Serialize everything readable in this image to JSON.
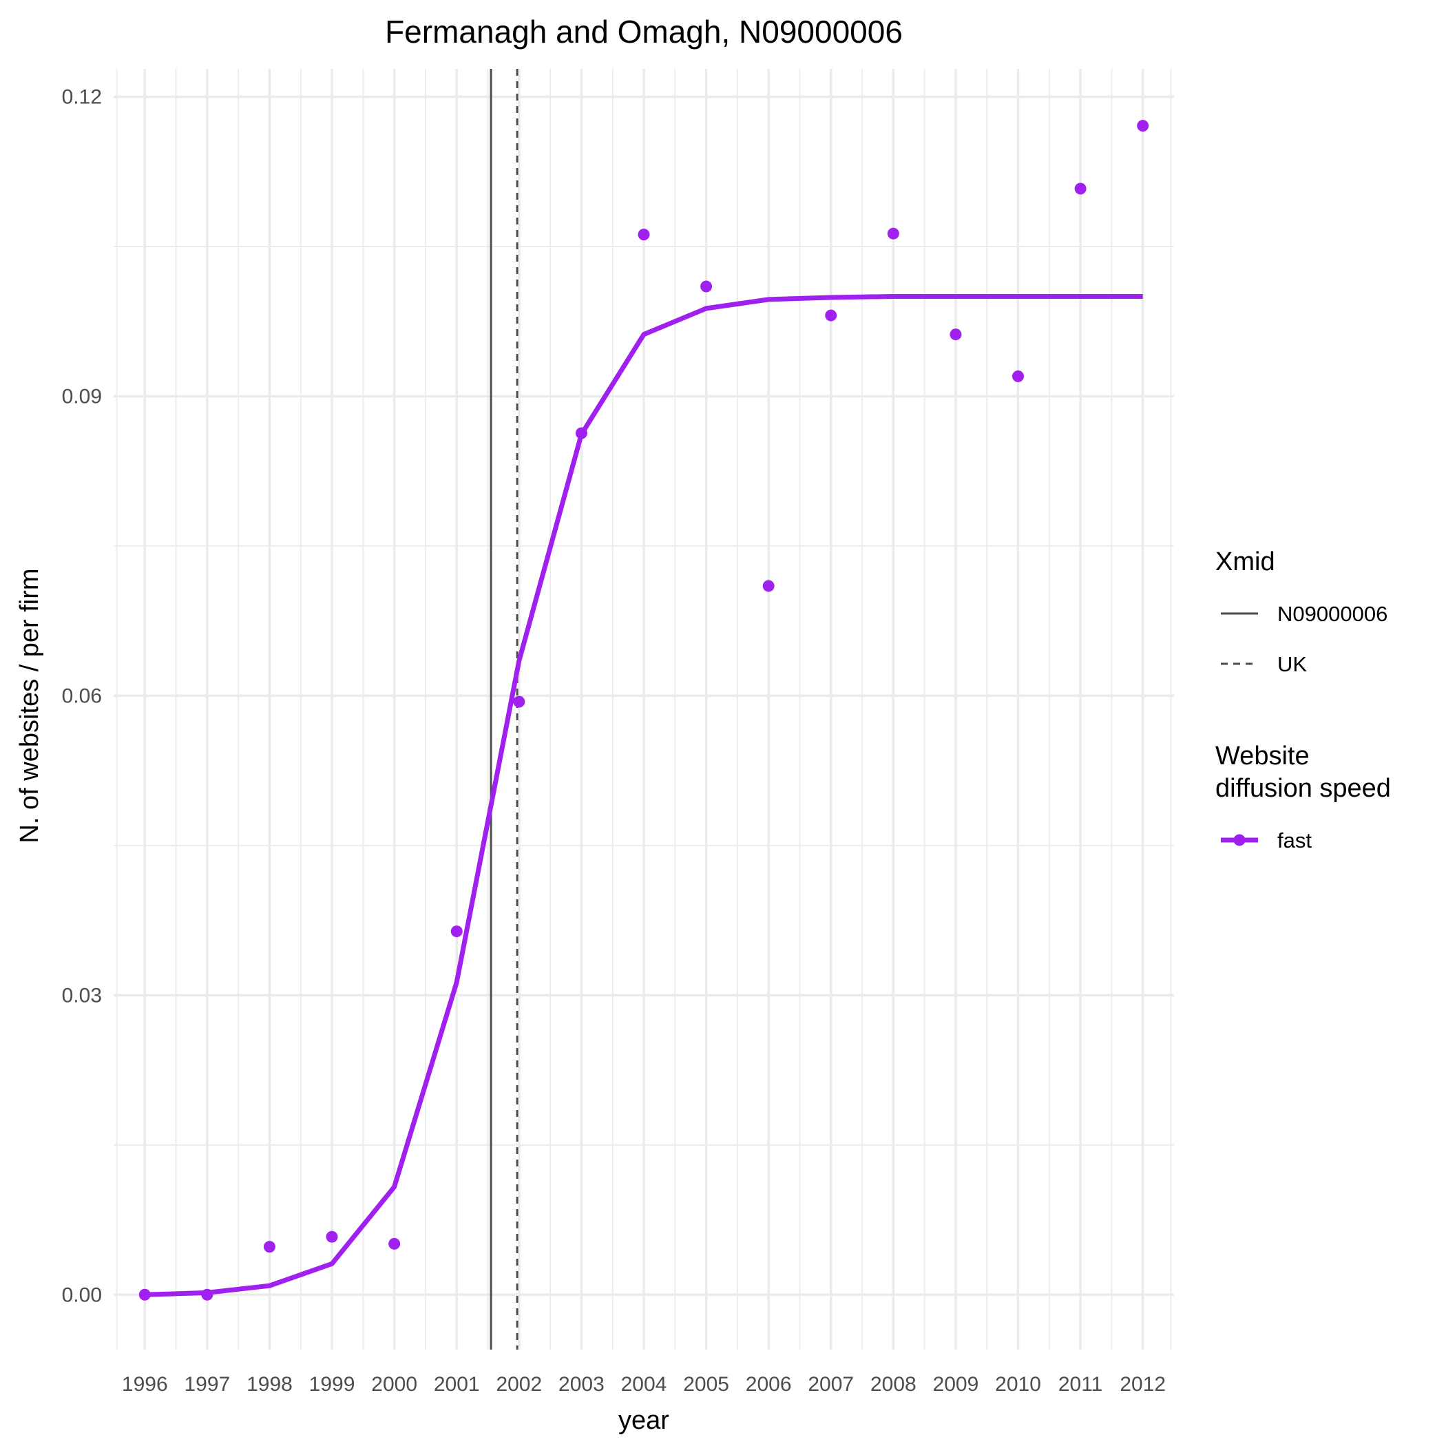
{
  "chart_data": {
    "type": "line",
    "title": "Fermanagh and Omagh, N09000006",
    "xlabel": "year",
    "ylabel": "N. of websites / per firm",
    "x": [
      1996,
      1997,
      1998,
      1999,
      2000,
      2001,
      2002,
      2003,
      2004,
      2005,
      2006,
      2007,
      2008,
      2009,
      2010,
      2011,
      2012
    ],
    "xlim": [
      1995.5,
      2012.5
    ],
    "ylim": [
      -0.0055,
      0.1228
    ],
    "yticks": [
      0.0,
      0.03,
      0.06,
      0.09,
      0.12
    ],
    "ytick_labels": [
      "0.00",
      "0.03",
      "0.06",
      "0.09",
      "0.12"
    ],
    "grid": true,
    "series": [
      {
        "name": "fast",
        "color": "#a020f0",
        "points": [
          0.0,
          0.0,
          0.0048,
          0.0058,
          0.0051,
          0.0364,
          0.0594,
          0.0863,
          0.1062,
          0.101,
          0.071,
          0.0981,
          0.1063,
          0.0962,
          0.092,
          0.1108,
          0.1171
        ],
        "fitted": [
          0.0,
          0.0002,
          0.0009,
          0.0031,
          0.0108,
          0.0313,
          0.0635,
          0.0862,
          0.0962,
          0.0988,
          0.0997,
          0.0999,
          0.1,
          0.1,
          0.1,
          0.1,
          0.1
        ]
      }
    ],
    "vlines": [
      {
        "name": "N09000006",
        "x": 2001.55,
        "style": "solid",
        "color": "#4d4d4d"
      },
      {
        "name": "UK",
        "x": 2001.97,
        "style": "dashed",
        "color": "#4d4d4d"
      }
    ],
    "legend": {
      "position": "right",
      "groups": [
        {
          "title": [
            "Xmid"
          ],
          "entries": [
            {
              "label": "N09000006",
              "kind": "solid"
            },
            {
              "label": "UK",
              "kind": "dashed"
            }
          ]
        },
        {
          "title": [
            "Website",
            "diffusion speed"
          ],
          "entries": [
            {
              "label": "fast",
              "kind": "line-point",
              "color": "#a020f0"
            }
          ]
        }
      ]
    }
  }
}
